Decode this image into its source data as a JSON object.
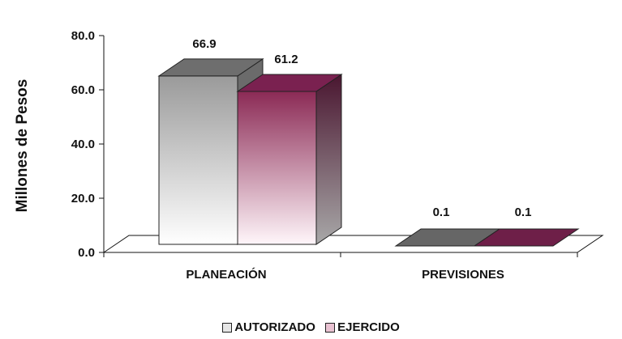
{
  "chart_data": {
    "type": "bar",
    "style": "3d-clustered-column",
    "title": "",
    "xlabel": "",
    "ylabel": "Millones de Pesos",
    "ylim": [
      0,
      80
    ],
    "yticks": [
      "0.0",
      "20.0",
      "40.0",
      "60.0",
      "80.0"
    ],
    "categories": [
      "PLANEACIÓN",
      "PREVISIONES"
    ],
    "series": [
      {
        "name": "AUTORIZADO",
        "values": [
          66.9,
          0.1
        ],
        "labels": [
          "66.9",
          "0.1"
        ],
        "color": "#a0a0a0",
        "gradient": "gray-to-white"
      },
      {
        "name": "EJERCIDO",
        "values": [
          61.2,
          0.1
        ],
        "labels": [
          "61.2",
          "0.1"
        ],
        "color": "#8b2a55",
        "gradient": "maroon-to-white"
      }
    ],
    "grid": false,
    "legend_position": "bottom"
  }
}
